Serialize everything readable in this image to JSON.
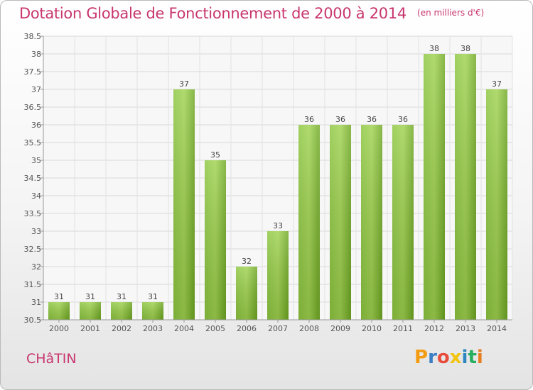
{
  "chart_data": {
    "type": "bar",
    "title": "Dotation Globale de Fonctionnement de 2000 à 2014",
    "subtitle": "(en milliers d'€)",
    "categories": [
      "2000",
      "2001",
      "2002",
      "2003",
      "2004",
      "2005",
      "2006",
      "2007",
      "2008",
      "2009",
      "2010",
      "2011",
      "2012",
      "2013",
      "2014"
    ],
    "values": [
      31,
      31,
      31,
      31,
      37,
      35,
      32,
      33,
      36,
      36,
      36,
      36,
      38,
      38,
      37
    ],
    "ylim": [
      30.5,
      38.5
    ],
    "yticks": [
      "30.5",
      "31",
      "31.5",
      "32",
      "32.5",
      "33",
      "33.5",
      "34",
      "34.5",
      "35",
      "35.5",
      "36",
      "36.5",
      "37",
      "37.5",
      "38",
      "38.5"
    ],
    "grid": true,
    "bar_color": "#7ab52a",
    "title_color": "#c8366e"
  },
  "commune": "CHâTIN",
  "logo": {
    "letters": [
      "P",
      "r",
      "o",
      "x",
      "i",
      "t",
      "i"
    ],
    "colors": [
      "#f39c12",
      "#3a7fc4",
      "#e74c3c",
      "#f1c40f",
      "#2e86c1",
      "#27ae60",
      "#e67e22"
    ]
  }
}
